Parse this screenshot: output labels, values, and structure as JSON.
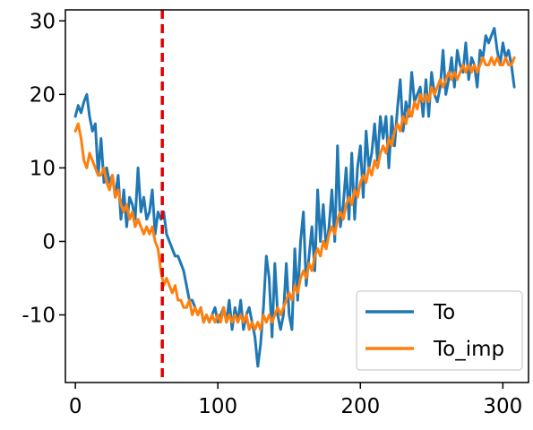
{
  "chart_data": {
    "type": "line",
    "title": "",
    "xlabel": "",
    "ylabel": "",
    "xlim": [
      -7,
      318
    ],
    "ylim": [
      -19.2,
      31.5
    ],
    "xticks": [
      0,
      100,
      200,
      300
    ],
    "xtick_labels": [
      "0",
      "100",
      "200",
      "300"
    ],
    "yticks": [
      -10,
      0,
      10,
      20,
      30
    ],
    "ytick_labels": [
      "-10",
      "0",
      "10",
      "20",
      "30"
    ],
    "grid": false,
    "legend_position": "lower-right",
    "vline": {
      "x": 61,
      "style": "dashed",
      "color": "#e00000"
    },
    "series": [
      {
        "name": "To",
        "color": "#1f77b4",
        "points": [
          [
            0,
            17
          ],
          [
            2,
            18.5
          ],
          [
            4,
            17.5
          ],
          [
            6,
            19
          ],
          [
            8,
            20
          ],
          [
            10,
            17
          ],
          [
            12,
            15
          ],
          [
            14,
            16
          ],
          [
            16,
            9
          ],
          [
            18,
            14
          ],
          [
            20,
            8
          ],
          [
            22,
            10
          ],
          [
            24,
            8
          ],
          [
            26,
            9
          ],
          [
            28,
            6
          ],
          [
            30,
            9
          ],
          [
            32,
            3
          ],
          [
            34,
            7
          ],
          [
            36,
            2
          ],
          [
            38,
            6
          ],
          [
            40,
            5
          ],
          [
            42,
            3
          ],
          [
            44,
            10
          ],
          [
            46,
            4
          ],
          [
            48,
            6
          ],
          [
            50,
            3
          ],
          [
            52,
            4
          ],
          [
            54,
            7
          ],
          [
            56,
            1
          ],
          [
            58,
            4
          ],
          [
            60,
            3
          ],
          [
            62,
            4
          ],
          [
            64,
            1
          ],
          [
            66,
            0
          ],
          [
            68,
            -1
          ],
          [
            70,
            -2
          ],
          [
            72,
            -2
          ],
          [
            74,
            -3
          ],
          [
            76,
            -4
          ],
          [
            78,
            -6
          ],
          [
            80,
            -8
          ],
          [
            82,
            -8
          ],
          [
            84,
            -9
          ],
          [
            86,
            -10
          ],
          [
            88,
            -9
          ],
          [
            90,
            -11
          ],
          [
            92,
            -10
          ],
          [
            94,
            -11
          ],
          [
            96,
            -10
          ],
          [
            98,
            -9
          ],
          [
            100,
            -11
          ],
          [
            102,
            -10
          ],
          [
            104,
            -9
          ],
          [
            106,
            -11
          ],
          [
            108,
            -8
          ],
          [
            110,
            -12
          ],
          [
            112,
            -9
          ],
          [
            114,
            -11
          ],
          [
            116,
            -8
          ],
          [
            118,
            -12
          ],
          [
            120,
            -10
          ],
          [
            122,
            -9
          ],
          [
            124,
            -11
          ],
          [
            126,
            -13
          ],
          [
            128,
            -17
          ],
          [
            130,
            -14
          ],
          [
            132,
            -9
          ],
          [
            134,
            -2
          ],
          [
            136,
            -5
          ],
          [
            138,
            -13
          ],
          [
            140,
            -3
          ],
          [
            142,
            -10
          ],
          [
            144,
            -12
          ],
          [
            146,
            -10
          ],
          [
            148,
            -3
          ],
          [
            150,
            -10
          ],
          [
            152,
            -12
          ],
          [
            154,
            -1
          ],
          [
            156,
            -8
          ],
          [
            158,
            0
          ],
          [
            160,
            4
          ],
          [
            162,
            -6
          ],
          [
            164,
            -2
          ],
          [
            166,
            2
          ],
          [
            168,
            -4
          ],
          [
            170,
            7
          ],
          [
            172,
            0
          ],
          [
            174,
            5
          ],
          [
            176,
            -1
          ],
          [
            178,
            2
          ],
          [
            180,
            7
          ],
          [
            182,
            0
          ],
          [
            184,
            13
          ],
          [
            186,
            2
          ],
          [
            188,
            5
          ],
          [
            190,
            10
          ],
          [
            192,
            3
          ],
          [
            194,
            12
          ],
          [
            196,
            3
          ],
          [
            198,
            10
          ],
          [
            200,
            13
          ],
          [
            202,
            6
          ],
          [
            204,
            15
          ],
          [
            206,
            10
          ],
          [
            208,
            12
          ],
          [
            210,
            16
          ],
          [
            212,
            11
          ],
          [
            214,
            17
          ],
          [
            216,
            14
          ],
          [
            218,
            17
          ],
          [
            220,
            10
          ],
          [
            222,
            17
          ],
          [
            224,
            13
          ],
          [
            226,
            18
          ],
          [
            228,
            22
          ],
          [
            230,
            15
          ],
          [
            232,
            19
          ],
          [
            234,
            17
          ],
          [
            236,
            23
          ],
          [
            238,
            19
          ],
          [
            240,
            20
          ],
          [
            242,
            21
          ],
          [
            244,
            17
          ],
          [
            246,
            22
          ],
          [
            248,
            17
          ],
          [
            250,
            23
          ],
          [
            252,
            20
          ],
          [
            254,
            19
          ],
          [
            256,
            21
          ],
          [
            258,
            26
          ],
          [
            260,
            20
          ],
          [
            262,
            22
          ],
          [
            264,
            25
          ],
          [
            266,
            21
          ],
          [
            268,
            26
          ],
          [
            270,
            24
          ],
          [
            272,
            23
          ],
          [
            274,
            27
          ],
          [
            276,
            22
          ],
          [
            278,
            25
          ],
          [
            280,
            24
          ],
          [
            282,
            21
          ],
          [
            284,
            26
          ],
          [
            286,
            25
          ],
          [
            288,
            28
          ],
          [
            290,
            27
          ],
          [
            292,
            28
          ],
          [
            294,
            29
          ],
          [
            296,
            26
          ],
          [
            298,
            24
          ],
          [
            300,
            27
          ],
          [
            302,
            25
          ],
          [
            304,
            26
          ],
          [
            306,
            24
          ],
          [
            308,
            21
          ]
        ]
      },
      {
        "name": "To_imp",
        "color": "#ff7f0e",
        "points": [
          [
            0,
            15
          ],
          [
            2,
            16
          ],
          [
            4,
            14
          ],
          [
            6,
            11
          ],
          [
            8,
            10
          ],
          [
            10,
            12
          ],
          [
            12,
            11
          ],
          [
            14,
            10
          ],
          [
            16,
            9
          ],
          [
            18,
            9
          ],
          [
            20,
            10
          ],
          [
            22,
            8
          ],
          [
            24,
            7
          ],
          [
            26,
            9
          ],
          [
            28,
            6
          ],
          [
            30,
            7
          ],
          [
            32,
            5
          ],
          [
            34,
            4
          ],
          [
            36,
            5
          ],
          [
            38,
            3
          ],
          [
            40,
            4
          ],
          [
            42,
            2
          ],
          [
            44,
            3
          ],
          [
            46,
            2
          ],
          [
            48,
            1
          ],
          [
            50,
            2
          ],
          [
            52,
            1
          ],
          [
            54,
            2
          ],
          [
            56,
            0
          ],
          [
            58,
            -1
          ],
          [
            60,
            -4
          ],
          [
            62,
            -6
          ],
          [
            64,
            -5
          ],
          [
            66,
            -6
          ],
          [
            68,
            -7
          ],
          [
            70,
            -6
          ],
          [
            72,
            -8
          ],
          [
            74,
            -8
          ],
          [
            76,
            -9
          ],
          [
            78,
            -9
          ],
          [
            80,
            -8
          ],
          [
            82,
            -10
          ],
          [
            84,
            -9
          ],
          [
            86,
            -10
          ],
          [
            88,
            -9
          ],
          [
            90,
            -11
          ],
          [
            92,
            -10
          ],
          [
            94,
            -11
          ],
          [
            96,
            -10
          ],
          [
            98,
            -11
          ],
          [
            100,
            -10
          ],
          [
            102,
            -11
          ],
          [
            104,
            -9
          ],
          [
            106,
            -11
          ],
          [
            108,
            -10
          ],
          [
            110,
            -11
          ],
          [
            112,
            -10
          ],
          [
            114,
            -11
          ],
          [
            116,
            -10
          ],
          [
            118,
            -11
          ],
          [
            120,
            -10
          ],
          [
            122,
            -12
          ],
          [
            124,
            -11
          ],
          [
            126,
            -12
          ],
          [
            128,
            -11
          ],
          [
            130,
            -12
          ],
          [
            132,
            -10
          ],
          [
            134,
            -11
          ],
          [
            136,
            -10
          ],
          [
            138,
            -11
          ],
          [
            140,
            -10
          ],
          [
            142,
            -9
          ],
          [
            144,
            -10
          ],
          [
            146,
            -9
          ],
          [
            148,
            -8
          ],
          [
            150,
            -7
          ],
          [
            152,
            -8
          ],
          [
            154,
            -6
          ],
          [
            156,
            -7
          ],
          [
            158,
            -5
          ],
          [
            160,
            -4
          ],
          [
            162,
            -5
          ],
          [
            164,
            -3
          ],
          [
            166,
            -4
          ],
          [
            168,
            -2
          ],
          [
            170,
            -1
          ],
          [
            172,
            -2
          ],
          [
            174,
            0
          ],
          [
            176,
            -1
          ],
          [
            178,
            1
          ],
          [
            180,
            2
          ],
          [
            182,
            1
          ],
          [
            184,
            3
          ],
          [
            186,
            4
          ],
          [
            188,
            3
          ],
          [
            190,
            5
          ],
          [
            192,
            6
          ],
          [
            194,
            5
          ],
          [
            196,
            7
          ],
          [
            198,
            6
          ],
          [
            200,
            8
          ],
          [
            202,
            9
          ],
          [
            204,
            8
          ],
          [
            206,
            10
          ],
          [
            208,
            9
          ],
          [
            210,
            11
          ],
          [
            212,
            10
          ],
          [
            214,
            12
          ],
          [
            216,
            13
          ],
          [
            218,
            12
          ],
          [
            220,
            14
          ],
          [
            222,
            13
          ],
          [
            224,
            15
          ],
          [
            226,
            16
          ],
          [
            228,
            15
          ],
          [
            230,
            17
          ],
          [
            232,
            16
          ],
          [
            234,
            18
          ],
          [
            236,
            17
          ],
          [
            238,
            19
          ],
          [
            240,
            18
          ],
          [
            242,
            20
          ],
          [
            244,
            19
          ],
          [
            246,
            20
          ],
          [
            248,
            19
          ],
          [
            250,
            21
          ],
          [
            252,
            20
          ],
          [
            254,
            21
          ],
          [
            256,
            22
          ],
          [
            258,
            21
          ],
          [
            260,
            22
          ],
          [
            262,
            23
          ],
          [
            264,
            22
          ],
          [
            266,
            23
          ],
          [
            268,
            22
          ],
          [
            270,
            23
          ],
          [
            272,
            24
          ],
          [
            274,
            23
          ],
          [
            276,
            24
          ],
          [
            278,
            23
          ],
          [
            280,
            24
          ],
          [
            282,
            23
          ],
          [
            284,
            24
          ],
          [
            286,
            25
          ],
          [
            288,
            24
          ],
          [
            290,
            24
          ],
          [
            292,
            25
          ],
          [
            294,
            24
          ],
          [
            296,
            25
          ],
          [
            298,
            24
          ],
          [
            300,
            24
          ],
          [
            302,
            25
          ],
          [
            304,
            24
          ],
          [
            306,
            24
          ],
          [
            308,
            25
          ]
        ]
      }
    ]
  }
}
